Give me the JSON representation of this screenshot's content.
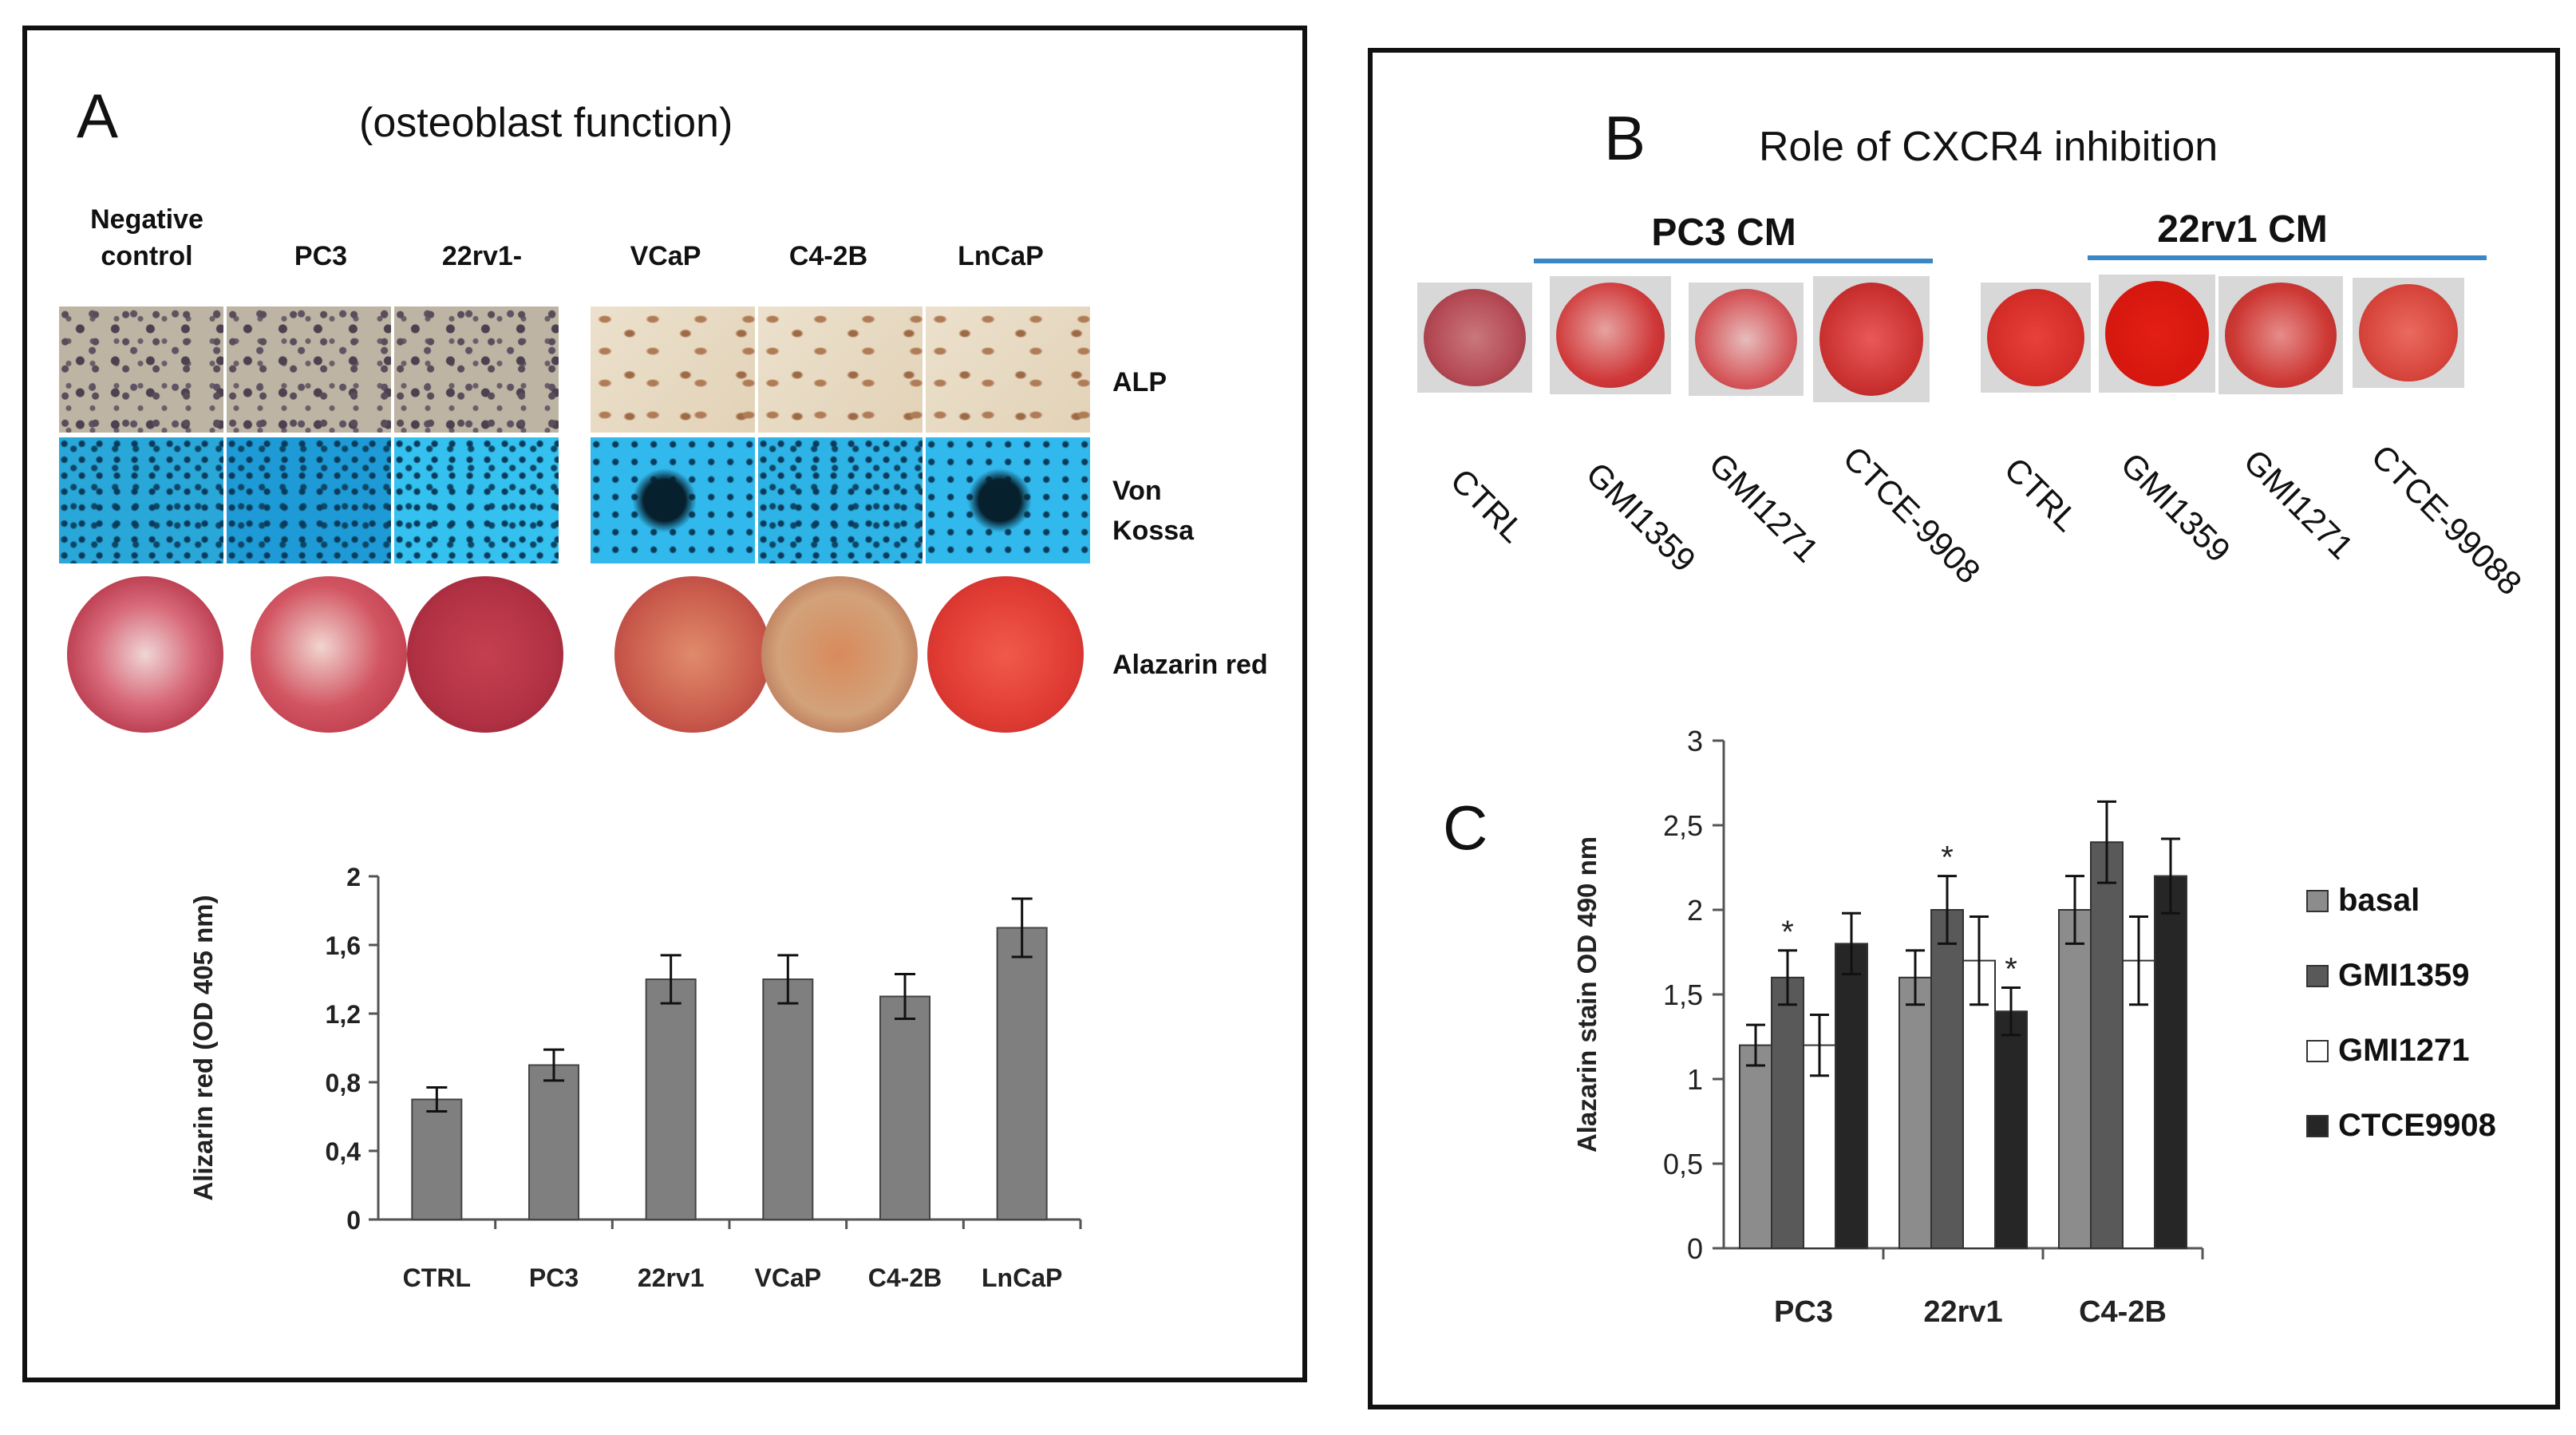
{
  "panelA": {
    "letter": "A",
    "title": "(osteoblast function)",
    "column_labels": [
      "Negative\ncontrol",
      "PC3",
      "22rv1-",
      "VCaP",
      "C4-2B",
      "LnCaP"
    ],
    "row_labels": [
      "ALP",
      "Von\nKossa",
      "Alazarin red"
    ]
  },
  "panelB": {
    "letter": "B",
    "title": "Role of CXCR4 inhibition",
    "cm_groups": [
      "PC3 CM",
      "22rv1 CM"
    ],
    "treatments": [
      "CTRL",
      "GMI1359",
      "GMI1271",
      "CTCE-9908",
      "CTRL",
      "GMI1359",
      "GMI1271",
      "CTCE-99088"
    ]
  },
  "panelC": {
    "letter": "C"
  },
  "chart_data": [
    {
      "type": "bar",
      "categories": [
        "CTRL",
        "PC3",
        "22rv1",
        "VCaP",
        "C4-2B",
        "LnCaP"
      ],
      "values": [
        0.7,
        0.9,
        1.4,
        1.4,
        1.3,
        1.7
      ],
      "errors": [
        0.07,
        0.09,
        0.14,
        0.14,
        0.13,
        0.17
      ],
      "ylabel": "Alizarin red (OD 405 nm)",
      "xlabel": "",
      "ylim": [
        0,
        2
      ],
      "yticks": [
        "0",
        "0,4",
        "0,8",
        "1,2",
        "1,6",
        "2"
      ],
      "ytick_values": [
        0,
        0.4,
        0.8,
        1.2,
        1.6,
        2
      ],
      "color": "#7f7f7f"
    },
    {
      "type": "bar",
      "categories": [
        "PC3",
        "22rv1",
        "C4-2B"
      ],
      "series": [
        {
          "name": "basal",
          "values": [
            1.2,
            1.6,
            2.0
          ],
          "errors": [
            0.12,
            0.16,
            0.2
          ],
          "color": "#8c8c8c"
        },
        {
          "name": "GMI1359",
          "values": [
            1.6,
            2.0,
            2.4
          ],
          "errors": [
            0.16,
            0.2,
            0.24
          ],
          "color": "#595959"
        },
        {
          "name": "GMI1271",
          "values": [
            1.2,
            1.7,
            1.7
          ],
          "errors": [
            0.18,
            0.26,
            0.26
          ],
          "color": "#ffffff"
        },
        {
          "name": "CTCE9908",
          "values": [
            1.8,
            1.4,
            2.2
          ],
          "errors": [
            0.18,
            0.14,
            0.22
          ],
          "color": "#262626"
        }
      ],
      "significance": [
        {
          "category": "PC3",
          "series": "GMI1359",
          "label": "*"
        },
        {
          "category": "22rv1",
          "series": "GMI1359",
          "label": "*"
        },
        {
          "category": "22rv1",
          "series": "CTCE9908",
          "label": "*"
        }
      ],
      "ylabel": "Alazarin stain OD 490 nm",
      "xlabel": "",
      "ylim": [
        0,
        3
      ],
      "yticks": [
        "0",
        "0,5",
        "1",
        "1,5",
        "2",
        "2,5",
        "3"
      ],
      "ytick_values": [
        0,
        0.5,
        1,
        1.5,
        2,
        2.5,
        3
      ],
      "legend_position": "right"
    }
  ]
}
